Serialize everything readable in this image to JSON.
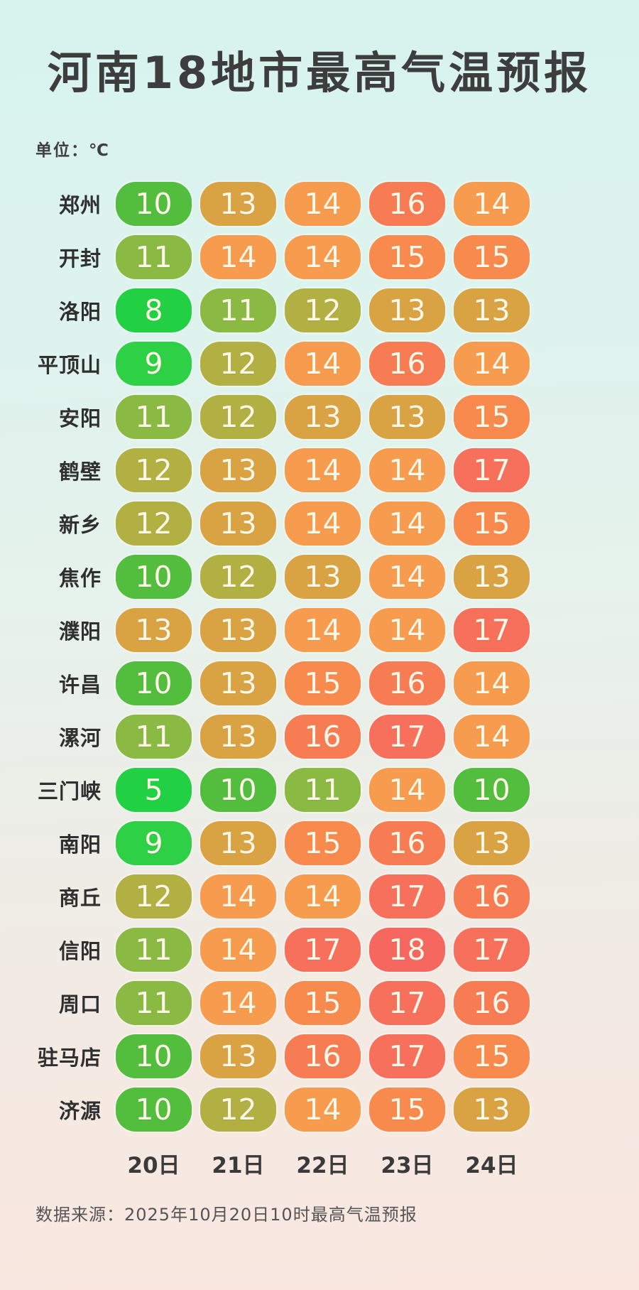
{
  "title": "河南18地市最高气温预报",
  "unit_label": "单位：℃",
  "footer": {
    "source": "数据来源：2025年10月20日10时最高气温预报"
  },
  "chart_data": {
    "type": "heatmap",
    "title": "河南18地市最高气温预报",
    "unit": "℃",
    "columns": [
      "20日",
      "21日",
      "22日",
      "23日",
      "24日"
    ],
    "rows": [
      {
        "city": "郑州",
        "values": [
          10,
          13,
          14,
          16,
          14
        ]
      },
      {
        "city": "开封",
        "values": [
          11,
          14,
          14,
          15,
          15
        ]
      },
      {
        "city": "洛阳",
        "values": [
          8,
          11,
          12,
          13,
          13
        ]
      },
      {
        "city": "平顶山",
        "values": [
          9,
          12,
          14,
          16,
          14
        ]
      },
      {
        "city": "安阳",
        "values": [
          11,
          12,
          13,
          13,
          15
        ]
      },
      {
        "city": "鹤壁",
        "values": [
          12,
          13,
          14,
          14,
          17
        ]
      },
      {
        "city": "新乡",
        "values": [
          12,
          13,
          14,
          14,
          15
        ]
      },
      {
        "city": "焦作",
        "values": [
          10,
          12,
          13,
          14,
          13
        ]
      },
      {
        "city": "濮阳",
        "values": [
          13,
          13,
          14,
          14,
          17
        ]
      },
      {
        "city": "许昌",
        "values": [
          10,
          13,
          15,
          16,
          14
        ]
      },
      {
        "city": "漯河",
        "values": [
          11,
          13,
          16,
          17,
          14
        ]
      },
      {
        "city": "三门峡",
        "values": [
          5,
          10,
          11,
          14,
          10
        ]
      },
      {
        "city": "南阳",
        "values": [
          9,
          13,
          15,
          16,
          13
        ]
      },
      {
        "city": "商丘",
        "values": [
          12,
          14,
          14,
          17,
          16
        ]
      },
      {
        "city": "信阳",
        "values": [
          11,
          14,
          17,
          18,
          17
        ]
      },
      {
        "city": "周口",
        "values": [
          11,
          14,
          15,
          17,
          16
        ]
      },
      {
        "city": "驻马店",
        "values": [
          10,
          13,
          16,
          17,
          15
        ]
      },
      {
        "city": "济源",
        "values": [
          10,
          12,
          14,
          15,
          13
        ]
      }
    ],
    "color_scale": {
      "5": "#22d143",
      "8": "#22d143",
      "9": "#2ed046",
      "10": "#53bd3d",
      "11": "#8aba43",
      "12": "#b2af43",
      "13": "#d9a344",
      "14": "#f79c4e",
      "15": "#f88a4d",
      "16": "#f87c53",
      "17": "#f7705b",
      "18": "#f6685f"
    },
    "legend_position": "none",
    "grid": false
  }
}
